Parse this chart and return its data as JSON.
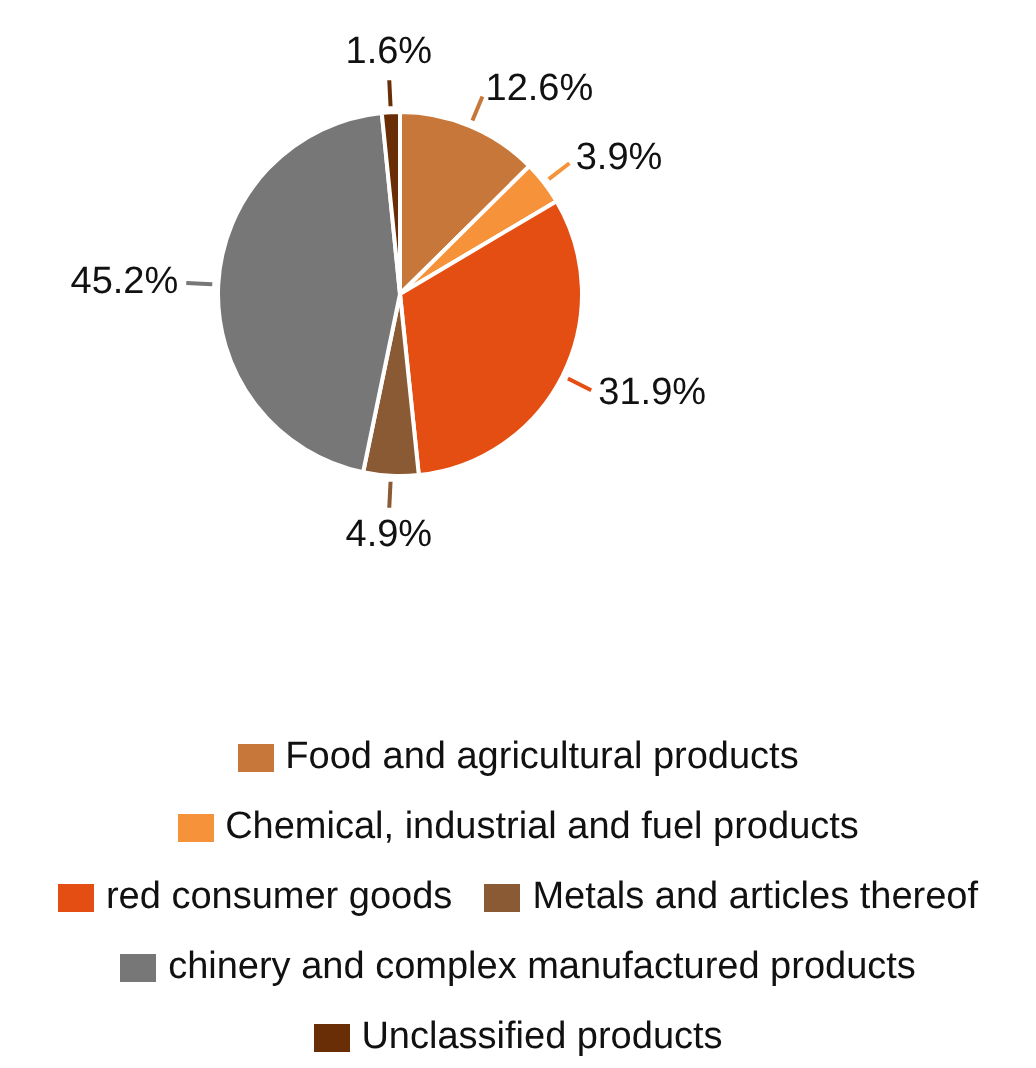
{
  "chart_data": {
    "type": "pie",
    "categories": [
      "Food and agricultural products",
      "Chemical, industrial and fuel products",
      "red consumer goods",
      "Metals and articles thereof",
      "chinery and complex manufactured products",
      "Unclassified products"
    ],
    "values": [
      12.6,
      3.9,
      31.9,
      4.9,
      45.2,
      1.6
    ],
    "colors": [
      "#c8773a",
      "#f6923a",
      "#e44e12",
      "#8a5a35",
      "#777777",
      "#6a2e06"
    ],
    "value_labels": [
      "12.6%",
      "3.9%",
      "31.9%",
      "4.9%",
      "45.2%",
      "1.6%"
    ],
    "legend": "bottom"
  }
}
